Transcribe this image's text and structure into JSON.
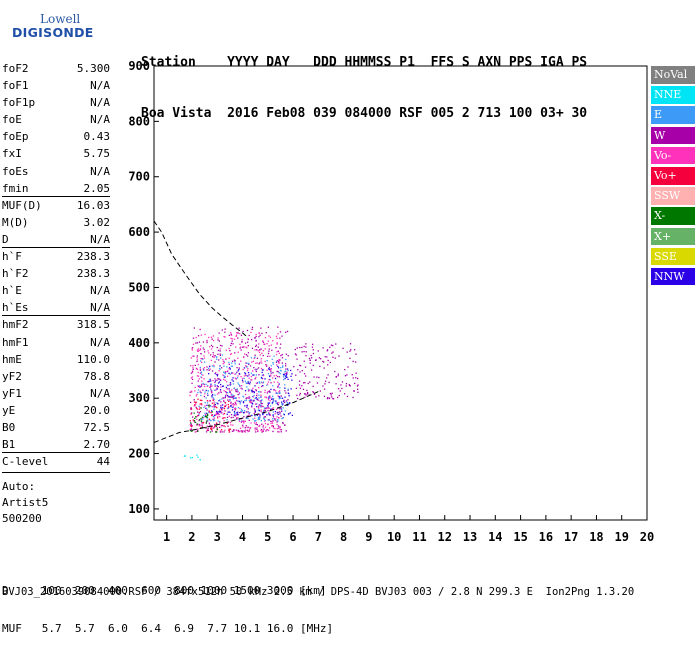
{
  "logo": {
    "line1": "Lowell",
    "line2": "DIGISONDE"
  },
  "header": {
    "row1": "Station    YYYY DAY   DDD HHMMSS P1  FFS S AXN PPS IGA PS",
    "row2": "Boa Vista  2016 Feb08 039 084000 RSF 005 2 713 100 03+ 30"
  },
  "params": [
    {
      "k": "foF2",
      "v": "5.300"
    },
    {
      "k": "foF1",
      "v": "N/A"
    },
    {
      "k": "foF1p",
      "v": "N/A"
    },
    {
      "k": "foE",
      "v": "N/A"
    },
    {
      "k": "foEp",
      "v": "0.43"
    },
    {
      "k": "fxI",
      "v": "5.75"
    },
    {
      "k": "foEs",
      "v": "N/A"
    },
    {
      "k": "fmin",
      "v": "2.05"
    },
    {
      "k": "MUF(D)",
      "v": "16.03",
      "sep": true
    },
    {
      "k": "M(D)",
      "v": "3.02"
    },
    {
      "k": "D",
      "v": "N/A"
    },
    {
      "k": "h`F",
      "v": "238.3",
      "sep": true
    },
    {
      "k": "h`F2",
      "v": "238.3"
    },
    {
      "k": "h`E",
      "v": "N/A"
    },
    {
      "k": "h`Es",
      "v": "N/A"
    },
    {
      "k": "hmF2",
      "v": "318.5",
      "sep": true
    },
    {
      "k": "hmF1",
      "v": "N/A"
    },
    {
      "k": "hmE",
      "v": "110.0"
    },
    {
      "k": "yF2",
      "v": "78.8"
    },
    {
      "k": "yF1",
      "v": "N/A"
    },
    {
      "k": "yE",
      "v": "20.0"
    },
    {
      "k": "B0",
      "v": "72.5"
    },
    {
      "k": "B1",
      "v": "2.70"
    },
    {
      "k": "C-level",
      "v": "44",
      "sep": true
    }
  ],
  "auto": {
    "l1": "Auto:",
    "l2": "Artist5",
    "l3": "500200"
  },
  "legend": [
    {
      "label": "NoVal",
      "color": "#808080"
    },
    {
      "label": "NNE",
      "color": "#00e5f5"
    },
    {
      "label": "E",
      "color": "#3d9bf7"
    },
    {
      "label": "W",
      "color": "#a800a8"
    },
    {
      "label": "Vo-",
      "color": "#ff33bb"
    },
    {
      "label": "Vo+",
      "color": "#f5003d"
    },
    {
      "label": "SSW",
      "color": "#ffb0b0"
    },
    {
      "label": "X-",
      "color": "#007800"
    },
    {
      "label": "X+",
      "color": "#66b266"
    },
    {
      "label": "SSE",
      "color": "#d9d900"
    },
    {
      "label": "NNW",
      "color": "#2b00e6"
    }
  ],
  "bottom": {
    "d_row": "D     100  200  400  600  800 1000 1500 3000 [km]",
    "muf_row": "MUF   5.7  5.7  6.0  6.4  6.9  7.7 10.1 16.0 [MHz]"
  },
  "footer": "BVJ03_2016039084000.RSF / 384fx512h 50 kHz 2.5 km / DPS-4D BVJ03 003 / 2.8 N 299.3 E  Ion2Png 1.3.20",
  "chart_data": {
    "type": "scatter",
    "xlabel": "",
    "ylabel": "",
    "xlim": [
      0.5,
      20
    ],
    "ylim": [
      80,
      900
    ],
    "x_ticks": [
      1,
      2,
      3,
      4,
      5,
      6,
      7,
      8,
      9,
      10,
      11,
      12,
      13,
      14,
      15,
      16,
      17,
      18,
      19,
      20
    ],
    "y_ticks": [
      100,
      200,
      300,
      400,
      500,
      600,
      700,
      800,
      900
    ],
    "grid": false,
    "legend_position": "right",
    "traces": [
      {
        "name": "hmF2-profile",
        "style": "dashed",
        "points": [
          [
            0.5,
            220
          ],
          [
            1.5,
            238
          ],
          [
            2.0,
            242
          ],
          [
            3.0,
            252
          ],
          [
            4.0,
            264
          ],
          [
            5.0,
            276
          ],
          [
            6.0,
            292
          ],
          [
            6.7,
            306
          ],
          [
            7.0,
            312
          ]
        ]
      },
      {
        "name": "virtual-height-model",
        "style": "dashed",
        "points": [
          [
            0.5,
            620
          ],
          [
            0.8,
            600
          ],
          [
            1.2,
            560
          ],
          [
            1.8,
            520
          ],
          [
            2.3,
            488
          ],
          [
            2.8,
            463
          ],
          [
            3.2,
            447
          ],
          [
            3.6,
            432
          ],
          [
            4.0,
            418
          ],
          [
            4.2,
            410
          ]
        ]
      }
    ],
    "echo_clusters": [
      {
        "mode": "W",
        "color": "#a800a8",
        "f_range": [
          1.9,
          5.8
        ],
        "h_range": [
          240,
          430
        ]
      },
      {
        "mode": "E",
        "color": "#3d9bf7",
        "f_range": [
          2.2,
          5.8
        ],
        "h_range": [
          260,
          380
        ]
      },
      {
        "mode": "NNW",
        "color": "#2b00e6",
        "f_range": [
          2.5,
          6.0
        ],
        "h_range": [
          270,
          360
        ]
      },
      {
        "mode": "Vo-",
        "color": "#ff33bb",
        "f_range": [
          1.9,
          5.5
        ],
        "h_range": [
          240,
          420
        ]
      },
      {
        "mode": "Vo+",
        "color": "#f5003d",
        "f_range": [
          1.9,
          3.5
        ],
        "h_range": [
          240,
          300
        ]
      },
      {
        "mode": "X-",
        "color": "#007800",
        "f_range": [
          1.9,
          3.0
        ],
        "h_range": [
          240,
          290
        ]
      },
      {
        "mode": "NNE",
        "color": "#00e5f5",
        "f_range": [
          1.6,
          2.8
        ],
        "h_range": [
          190,
          200
        ]
      },
      {
        "mode": "W",
        "color": "#a800a8",
        "f_range": [
          6.0,
          8.6
        ],
        "h_range": [
          300,
          400
        ]
      }
    ]
  }
}
